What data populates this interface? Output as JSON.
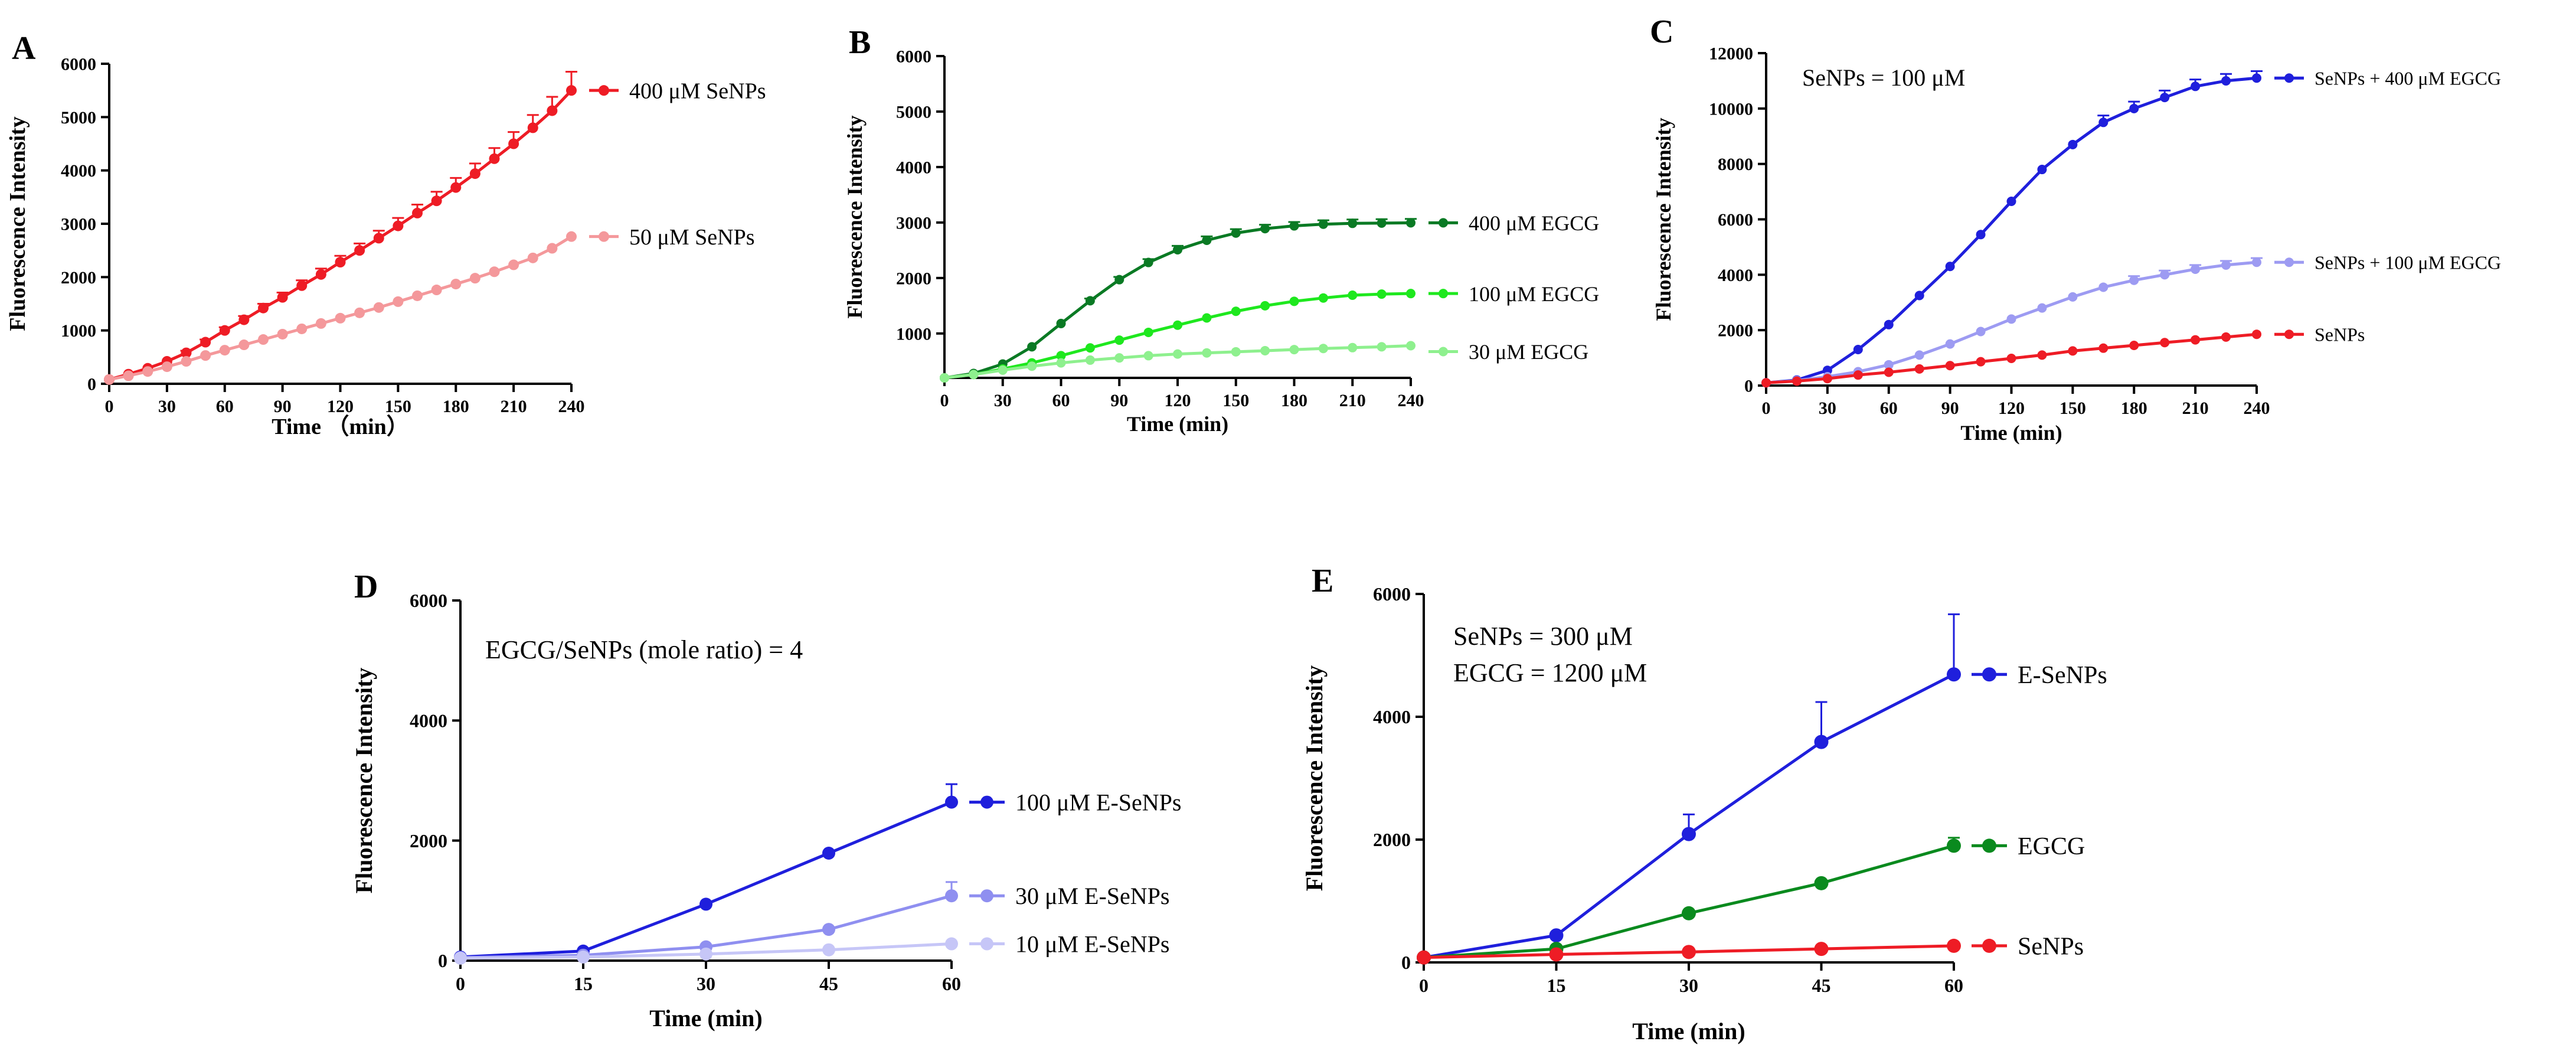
{
  "chart_data": [
    {
      "panel": "A",
      "type": "line",
      "title": "",
      "xlabel": "Time （min）",
      "ylabel": "Fluorescence Intensity",
      "xlim": [
        0,
        240
      ],
      "ylim": [
        0,
        6000
      ],
      "x_ticks": [
        0,
        30,
        60,
        90,
        120,
        150,
        180,
        210,
        240
      ],
      "y_ticks": [
        0,
        1000,
        2000,
        3000,
        4000,
        5000,
        6000
      ],
      "annotation": "",
      "legend_placement": "right-of-line-ends",
      "grid": false,
      "x": [
        0,
        10,
        20,
        30,
        40,
        50,
        60,
        70,
        80,
        90,
        100,
        110,
        120,
        130,
        140,
        150,
        160,
        170,
        180,
        190,
        200,
        210,
        220,
        230,
        240
      ],
      "series": [
        {
          "name": "400 μM SeNPs",
          "color": "#ee1c25",
          "values": [
            80,
            180,
            290,
            420,
            580,
            780,
            1000,
            1200,
            1420,
            1620,
            1840,
            2050,
            2280,
            2500,
            2730,
            2960,
            3200,
            3430,
            3680,
            3940,
            4220,
            4500,
            4800,
            5120,
            5500
          ],
          "errors": [
            0,
            0,
            0,
            0,
            40,
            50,
            60,
            70,
            80,
            90,
            100,
            110,
            120,
            130,
            140,
            150,
            160,
            170,
            180,
            190,
            200,
            220,
            240,
            260,
            350
          ]
        },
        {
          "name": "50 μM SeNPs",
          "color": "#f4989b",
          "values": [
            80,
            150,
            230,
            320,
            420,
            530,
            630,
            730,
            830,
            930,
            1030,
            1130,
            1230,
            1330,
            1430,
            1540,
            1650,
            1760,
            1870,
            1980,
            2100,
            2230,
            2360,
            2540,
            2760
          ],
          "errors": []
        }
      ]
    },
    {
      "panel": "B",
      "type": "line",
      "title": "",
      "xlabel": "Time (min)",
      "ylabel": "Fluorescence Intensity",
      "xlim": [
        0,
        240
      ],
      "ylim": [
        200,
        6000
      ],
      "x_ticks": [
        0,
        30,
        60,
        90,
        120,
        150,
        180,
        210,
        240
      ],
      "y_ticks": [
        1000,
        2000,
        3000,
        4000,
        5000,
        6000
      ],
      "annotation": "",
      "legend_placement": "right-of-line-ends",
      "grid": false,
      "x": [
        0,
        15,
        30,
        45,
        60,
        75,
        90,
        105,
        120,
        135,
        150,
        165,
        180,
        195,
        210,
        225,
        240
      ],
      "series": [
        {
          "name": "400 μM EGCG",
          "color": "#0a7a24",
          "values": [
            200,
            280,
            450,
            760,
            1180,
            1590,
            1970,
            2280,
            2510,
            2680,
            2810,
            2890,
            2940,
            2970,
            2985,
            2990,
            2995
          ],
          "errors": [
            0,
            0,
            0,
            0,
            0,
            40,
            50,
            60,
            70,
            70,
            70,
            70,
            70,
            70,
            70,
            70,
            70
          ]
        },
        {
          "name": "100 μM EGCG",
          "color": "#1ee81e",
          "values": [
            200,
            260,
            360,
            470,
            600,
            740,
            880,
            1020,
            1150,
            1280,
            1400,
            1500,
            1580,
            1640,
            1690,
            1710,
            1720
          ],
          "errors": []
        },
        {
          "name": "30 μM EGCG",
          "color": "#8ef08e",
          "values": [
            200,
            260,
            340,
            410,
            470,
            520,
            560,
            600,
            630,
            650,
            670,
            690,
            710,
            730,
            745,
            760,
            780
          ],
          "errors": []
        }
      ]
    },
    {
      "panel": "C",
      "type": "line",
      "title": "",
      "xlabel": "Time (min)",
      "ylabel": "Fluorescence Intensity",
      "xlim": [
        0,
        240
      ],
      "ylim": [
        0,
        12000
      ],
      "x_ticks": [
        0,
        30,
        60,
        90,
        120,
        150,
        180,
        210,
        240
      ],
      "y_ticks": [
        0,
        2000,
        4000,
        6000,
        8000,
        10000,
        12000
      ],
      "annotation": "SeNPs = 100 μM",
      "legend_placement": "right-of-line-ends",
      "grid": false,
      "x": [
        0,
        15,
        30,
        45,
        60,
        75,
        90,
        105,
        120,
        135,
        150,
        165,
        180,
        195,
        210,
        225,
        240
      ],
      "series": [
        {
          "name": "SeNPs + 400 μM EGCG",
          "color": "#1f1fdc",
          "values": [
            100,
            200,
            550,
            1300,
            2200,
            3250,
            4300,
            5450,
            6650,
            7800,
            8700,
            9500,
            10000,
            10400,
            10800,
            11000,
            11100
          ],
          "errors": [
            0,
            0,
            0,
            0,
            0,
            0,
            0,
            0,
            0,
            0,
            0,
            250,
            250,
            250,
            250,
            250,
            250
          ]
        },
        {
          "name": "SeNPs + 100 μM EGCG",
          "color": "#9d9bf2",
          "values": [
            100,
            180,
            320,
            500,
            750,
            1100,
            1500,
            1950,
            2400,
            2800,
            3200,
            3550,
            3800,
            4000,
            4200,
            4350,
            4450
          ],
          "errors": [
            0,
            0,
            0,
            0,
            0,
            0,
            0,
            0,
            0,
            0,
            0,
            0,
            150,
            150,
            150,
            150,
            150
          ]
        },
        {
          "name": "SeNPs",
          "color": "#ee1c25",
          "values": [
            100,
            160,
            250,
            380,
            480,
            600,
            720,
            860,
            980,
            1100,
            1250,
            1350,
            1450,
            1550,
            1650,
            1750,
            1850
          ],
          "errors": []
        }
      ]
    },
    {
      "panel": "D",
      "type": "line",
      "title": "",
      "xlabel": "Time (min)",
      "ylabel": "Fluorescence Intensity",
      "xlim": [
        0,
        60
      ],
      "ylim": [
        0,
        6000
      ],
      "x_ticks": [
        0,
        15,
        30,
        45,
        60
      ],
      "y_ticks": [
        0,
        2000,
        4000,
        6000
      ],
      "annotation": "EGCG/SeNPs (mole ratio) = 4",
      "legend_placement": "right-of-line-ends",
      "grid": false,
      "x": [
        0,
        15,
        30,
        45,
        60
      ],
      "series": [
        {
          "name": "100 μM E-SeNPs",
          "color": "#1f1fdc",
          "values": [
            60,
            160,
            940,
            1790,
            2640
          ],
          "errors": [
            0,
            0,
            0,
            0,
            300
          ]
        },
        {
          "name": "30 μM E-SeNPs",
          "color": "#8f8ff0",
          "values": [
            50,
            90,
            230,
            520,
            1080
          ],
          "errors": [
            0,
            0,
            0,
            0,
            230
          ]
        },
        {
          "name": "10 μM E-SeNPs",
          "color": "#c6c6f7",
          "values": [
            40,
            60,
            110,
            180,
            280
          ],
          "errors": []
        }
      ]
    },
    {
      "panel": "E",
      "type": "line",
      "title": "",
      "xlabel": "Time (min)",
      "ylabel": "Fluorescence Intensity",
      "xlim": [
        0,
        60
      ],
      "ylim": [
        0,
        6000
      ],
      "x_ticks": [
        0,
        15,
        30,
        45,
        60
      ],
      "y_ticks": [
        0,
        2000,
        4000,
        6000
      ],
      "annotation": [
        "SeNPs = 300 μM",
        "EGCG = 1200 μM"
      ],
      "legend_placement": "right-of-line-ends",
      "grid": false,
      "x": [
        0,
        15,
        30,
        45,
        60
      ],
      "series": [
        {
          "name": "E-SeNPs",
          "color": "#1f1fdc",
          "values": [
            80,
            440,
            2090,
            3590,
            4690
          ],
          "errors": [
            0,
            0,
            320,
            650,
            980
          ]
        },
        {
          "name": "EGCG",
          "color": "#0a8a1e",
          "values": [
            80,
            220,
            800,
            1290,
            1900
          ],
          "errors": [
            0,
            0,
            0,
            0,
            130
          ]
        },
        {
          "name": "SeNPs",
          "color": "#ee1c25",
          "values": [
            80,
            130,
            170,
            220,
            270
          ],
          "errors": []
        }
      ]
    }
  ]
}
